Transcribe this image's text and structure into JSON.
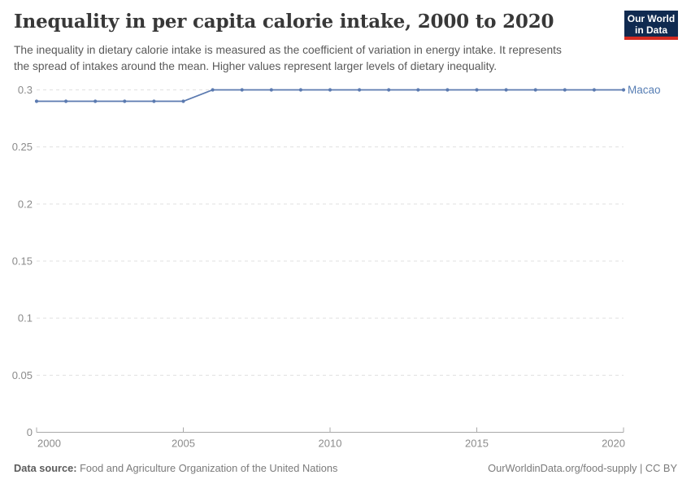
{
  "header": {
    "title": "Inequality in per capita calorie intake, 2000 to 2020",
    "subtitle_line1": "The inequality in dietary calorie intake is measured as the coefficient of variation in energy intake. It represents",
    "subtitle_line2": "the spread of intakes around the mean. Higher values represent larger levels of dietary inequality.",
    "logo": {
      "line1": "Our World",
      "line2": "in Data"
    }
  },
  "chart_data": {
    "type": "line",
    "title": "Inequality in per capita calorie intake, 2000 to 2020",
    "xlabel": "",
    "ylabel": "",
    "xlim": [
      2000,
      2020
    ],
    "ylim": [
      0,
      0.3
    ],
    "grid": "horizontal-dashed",
    "legend_position": "end-of-line-label",
    "xticks": [
      2000,
      2005,
      2010,
      2015,
      2020
    ],
    "yticks": [
      0,
      0.05,
      0.1,
      0.15,
      0.2,
      0.25,
      0.3
    ],
    "ytick_labels": [
      "0",
      "0.05",
      "0.1",
      "0.15",
      "0.2",
      "0.25",
      "0.3"
    ],
    "series": [
      {
        "name": "Macao",
        "x": [
          2000,
          2001,
          2002,
          2003,
          2004,
          2005,
          2006,
          2007,
          2008,
          2009,
          2010,
          2011,
          2012,
          2013,
          2014,
          2015,
          2016,
          2017,
          2018,
          2019,
          2020
        ],
        "values": [
          0.29,
          0.29,
          0.29,
          0.29,
          0.29,
          0.29,
          0.3,
          0.3,
          0.3,
          0.3,
          0.3,
          0.3,
          0.3,
          0.3,
          0.3,
          0.3,
          0.3,
          0.3,
          0.3,
          0.3,
          0.3
        ]
      }
    ]
  },
  "colors": {
    "line": "#5b7ab0",
    "series_label": "#577eb4",
    "grid": "#e0e0e0",
    "axis": "#a9a9a9",
    "tick_text": "#8b8b8b",
    "logo_bg": "#102a50",
    "logo_accent": "#d42b21"
  },
  "footer": {
    "source_label": "Data source:",
    "source_text": " Food and Agriculture Organization of the United Nations",
    "right_text": "OurWorldinData.org/food-supply | CC BY"
  }
}
